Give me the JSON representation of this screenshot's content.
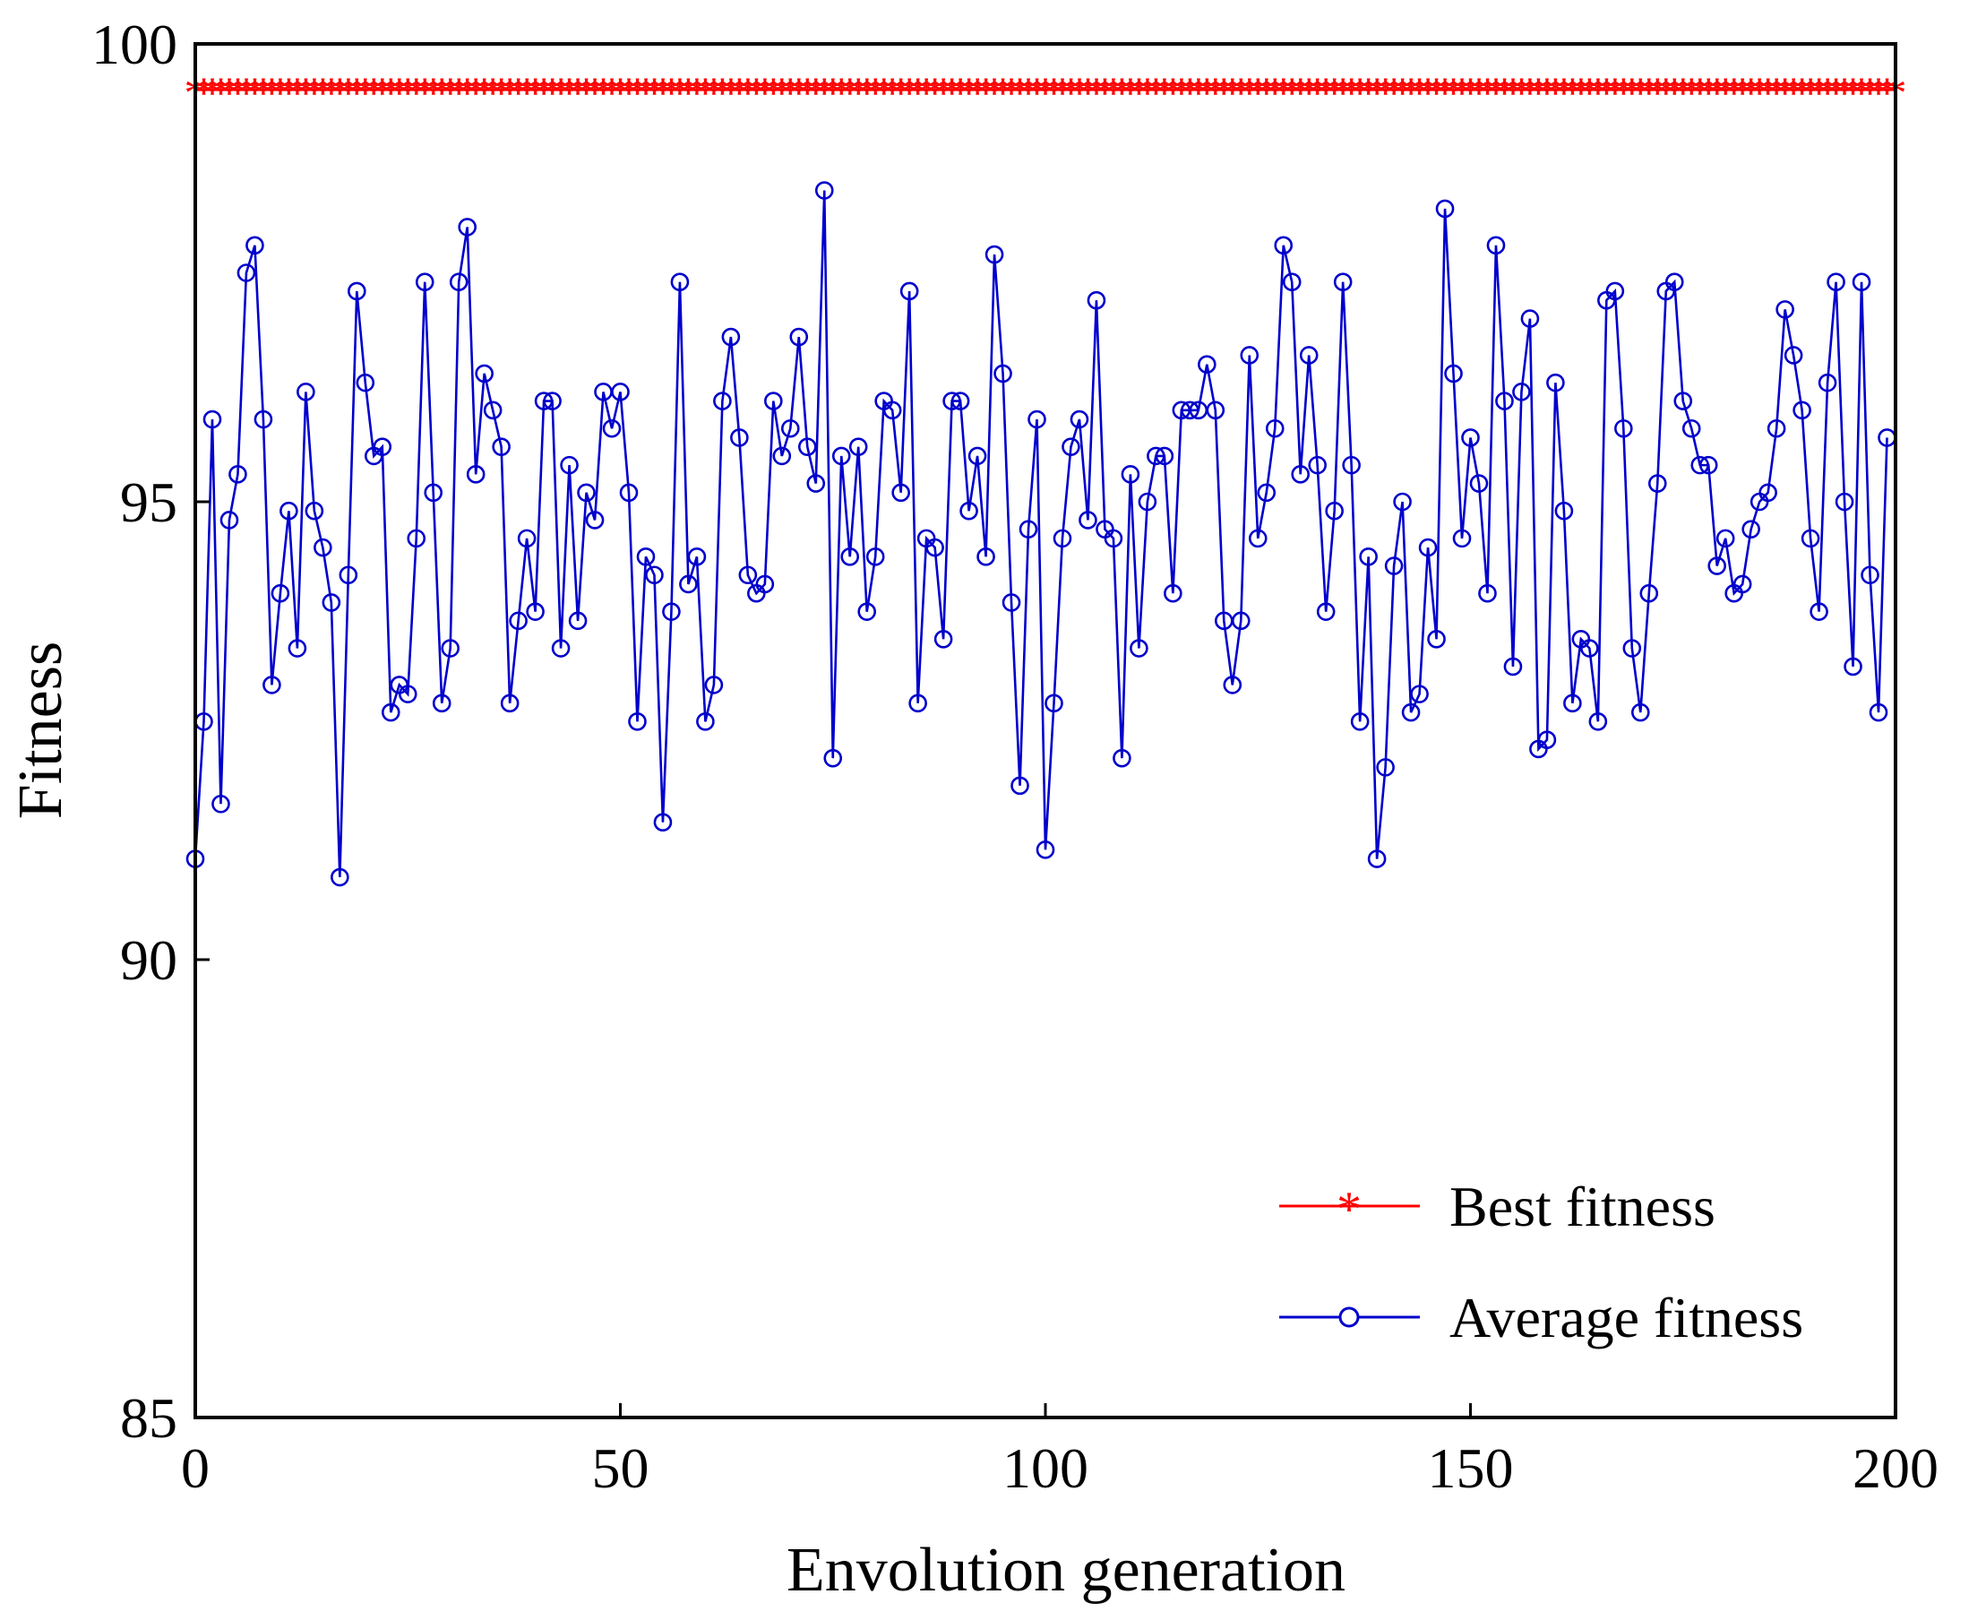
{
  "chart_data": {
    "type": "line",
    "title": "",
    "xlabel": "Envolution generation",
    "ylabel": "Fitness",
    "xlim": [
      0,
      200
    ],
    "ylim": [
      85,
      100
    ],
    "xticks": [
      0,
      50,
      100,
      150,
      200
    ],
    "yticks": [
      85,
      90,
      95,
      100
    ],
    "grid": false,
    "legend_position": "bottom-right",
    "series": [
      {
        "name": "Best fitness",
        "color": "#ff0000",
        "marker": "asterisk",
        "constant_value": 99.5,
        "x_range": [
          0,
          200
        ]
      },
      {
        "name": "Average fitness",
        "color": "#0000cc",
        "marker": "circle",
        "x_start": 0,
        "x_step": 1,
        "values": [
          91.1,
          92.6,
          95.9,
          91.7,
          94.8,
          95.3,
          97.5,
          97.8,
          95.9,
          93.0,
          94.0,
          94.9,
          93.4,
          96.2,
          94.9,
          94.5,
          93.9,
          90.9,
          94.2,
          97.3,
          96.3,
          95.5,
          95.6,
          92.7,
          93.0,
          92.9,
          94.6,
          97.4,
          95.1,
          92.8,
          93.4,
          97.4,
          98.0,
          95.3,
          96.4,
          96.0,
          95.6,
          92.8,
          93.7,
          94.6,
          93.8,
          96.1,
          96.1,
          93.4,
          95.4,
          93.7,
          95.1,
          94.8,
          96.2,
          95.8,
          96.2,
          95.1,
          92.6,
          94.4,
          94.2,
          91.5,
          93.8,
          97.4,
          94.1,
          94.4,
          92.6,
          93.0,
          96.1,
          96.8,
          95.7,
          94.2,
          94.0,
          94.1,
          96.1,
          95.5,
          95.8,
          96.8,
          95.6,
          95.2,
          98.4,
          92.2,
          95.5,
          94.4,
          95.6,
          93.8,
          94.4,
          96.1,
          96.0,
          95.1,
          97.3,
          92.8,
          94.6,
          94.5,
          93.5,
          96.1,
          96.1,
          94.9,
          95.5,
          94.4,
          97.7,
          96.4,
          93.9,
          91.9,
          94.7,
          95.9,
          91.2,
          92.8,
          94.6,
          95.6,
          95.9,
          94.8,
          97.2,
          94.7,
          94.6,
          92.2,
          95.3,
          93.4,
          95.0,
          95.5,
          95.5,
          94.0,
          96.0,
          96.0,
          96.0,
          96.5,
          96.0,
          93.7,
          93.0,
          93.7,
          96.6,
          94.6,
          95.1,
          95.8,
          97.8,
          97.4,
          95.3,
          96.6,
          95.4,
          93.8,
          94.9,
          97.4,
          95.4,
          92.6,
          94.4,
          91.1,
          92.1,
          94.3,
          95.0,
          92.7,
          92.9,
          94.5,
          93.5,
          98.2,
          96.4,
          94.6,
          95.7,
          95.2,
          94.0,
          97.8,
          96.1,
          93.2,
          96.2,
          97.0,
          92.3,
          92.4,
          96.3,
          94.9,
          92.8,
          93.5,
          93.4,
          92.6,
          97.2,
          97.3,
          95.8,
          93.4,
          92.7,
          94.0,
          95.2,
          97.3,
          97.4,
          96.1,
          95.8,
          95.4,
          95.4,
          94.3,
          94.6,
          94.0,
          94.1,
          94.7,
          95.0,
          95.1,
          95.8,
          97.1,
          96.6,
          96.0,
          94.6,
          93.8,
          96.3,
          97.4,
          95.0,
          93.2,
          97.4,
          94.2,
          92.7,
          95.7
        ]
      }
    ]
  }
}
